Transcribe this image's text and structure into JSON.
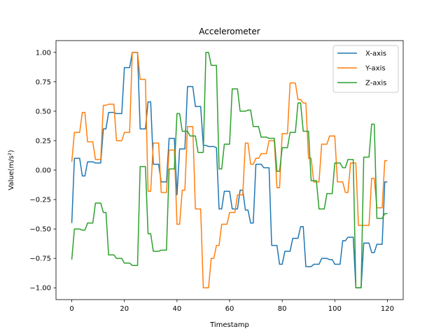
{
  "chart_data": {
    "type": "line",
    "title": "Accelerometer",
    "xlabel": "Timestamp",
    "ylabel": "Value(m/s²)",
    "xlim": [
      -6,
      126
    ],
    "ylim": [
      -1.1,
      1.1
    ],
    "xticks": [
      0,
      20,
      40,
      60,
      80,
      100,
      120
    ],
    "xtick_labels": [
      "0",
      "20",
      "40",
      "60",
      "80",
      "100",
      "120"
    ],
    "yticks": [
      1.0,
      0.75,
      0.5,
      0.25,
      0.0,
      -0.25,
      -0.5,
      -0.75,
      -1.0
    ],
    "ytick_labels": [
      "1.00",
      "0.75",
      "0.50",
      "0.25",
      "0.00",
      "−0.25",
      "−0.50",
      "−0.75",
      "−1.00"
    ],
    "grid": false,
    "legend_position": "top-right",
    "x": [
      0,
      1,
      2,
      3,
      4,
      5,
      6,
      7,
      8,
      9,
      10,
      11,
      12,
      13,
      14,
      15,
      16,
      17,
      18,
      19,
      20,
      21,
      22,
      23,
      24,
      25,
      26,
      27,
      28,
      29,
      30,
      31,
      32,
      33,
      34,
      35,
      36,
      37,
      38,
      39,
      40,
      41,
      42,
      43,
      44,
      45,
      46,
      47,
      48,
      49,
      50,
      51,
      52,
      53,
      54,
      55,
      56,
      57,
      58,
      59,
      60,
      61,
      62,
      63,
      64,
      65,
      66,
      67,
      68,
      69,
      70,
      71,
      72,
      73,
      74,
      75,
      76,
      77,
      78,
      79,
      80,
      81,
      82,
      83,
      84,
      85,
      86,
      87,
      88,
      89,
      90,
      91,
      92,
      93,
      94,
      95,
      96,
      97,
      98,
      99,
      100,
      101,
      102,
      103,
      104,
      105,
      106,
      107,
      108,
      109,
      110,
      111,
      112,
      113,
      114,
      115,
      116,
      117,
      118,
      119,
      120
    ],
    "series": [
      {
        "name": "X-axis",
        "color": "#1f77b4",
        "values": [
          -0.45,
          0.1,
          0.1,
          0.1,
          -0.05,
          -0.05,
          0.07,
          0.07,
          0.07,
          0.06,
          0.06,
          0.06,
          0.35,
          0.35,
          0.49,
          0.49,
          0.49,
          0.48,
          0.48,
          0.48,
          0.87,
          0.87,
          0.87,
          1.0,
          1.0,
          1.0,
          0.35,
          0.35,
          0.35,
          0.58,
          0.58,
          0.05,
          0.05,
          0.05,
          -0.1,
          -0.1,
          -0.1,
          0.27,
          0.27,
          0.27,
          -0.21,
          0.18,
          0.18,
          0.18,
          0.71,
          0.71,
          0.71,
          0.54,
          0.54,
          0.54,
          0.21,
          0.21,
          0.2,
          0.2,
          0.2,
          0.19,
          -0.33,
          -0.33,
          -0.18,
          -0.18,
          -0.18,
          -0.33,
          -0.33,
          -0.33,
          -0.17,
          -0.17,
          -0.34,
          -0.34,
          -0.45,
          -0.45,
          0.05,
          0.05,
          0.05,
          0.02,
          0.02,
          0.02,
          -0.64,
          -0.64,
          -0.64,
          -0.8,
          -0.8,
          -0.69,
          -0.69,
          -0.69,
          -0.58,
          -0.58,
          -0.58,
          -0.48,
          -0.48,
          -0.82,
          -0.82,
          -0.82,
          -0.8,
          -0.8,
          -0.8,
          -0.75,
          -0.75,
          -0.75,
          -0.76,
          -0.76,
          -0.8,
          -0.8,
          -0.8,
          -0.6,
          -0.6,
          -0.57,
          -0.57,
          -0.57,
          -1.0,
          -1.0,
          -1.0,
          -0.62,
          -0.62,
          -0.62,
          -0.7,
          -0.7,
          -0.63,
          -0.63,
          -0.63,
          -0.1,
          -0.1
        ]
      },
      {
        "name": "Y-axis",
        "color": "#ff7f0e",
        "values": [
          0.07,
          0.32,
          0.32,
          0.32,
          0.49,
          0.49,
          0.24,
          0.24,
          0.24,
          0.09,
          0.09,
          0.09,
          0.55,
          0.55,
          0.56,
          0.56,
          0.56,
          0.25,
          0.25,
          0.25,
          0.32,
          0.32,
          0.32,
          1.0,
          1.0,
          1.0,
          0.77,
          0.77,
          0.77,
          -0.18,
          -0.18,
          0.23,
          0.23,
          0.23,
          -0.19,
          -0.19,
          -0.19,
          0.17,
          0.17,
          0.17,
          -0.46,
          -0.46,
          -0.17,
          -0.17,
          0.37,
          0.37,
          0.37,
          -0.33,
          -0.33,
          -0.33,
          -1.0,
          -1.0,
          -1.0,
          -0.75,
          -0.75,
          -0.64,
          -0.64,
          -0.46,
          -0.46,
          -0.46,
          -0.36,
          -0.36,
          -0.36,
          -0.21,
          -0.21,
          -0.21,
          0.23,
          0.23,
          0.05,
          0.05,
          0.1,
          0.1,
          0.14,
          0.14,
          0.14,
          0.25,
          0.25,
          0.25,
          -0.15,
          -0.15,
          0.31,
          0.31,
          0.31,
          0.74,
          0.74,
          0.74,
          0.6,
          0.6,
          0.57,
          0.57,
          0.1,
          0.1,
          -0.1,
          -0.1,
          -0.1,
          0.22,
          0.22,
          0.22,
          0.29,
          0.29,
          0.29,
          -0.1,
          -0.1,
          -0.1,
          -0.19,
          -0.19,
          0.06,
          0.06,
          0.06,
          -0.47,
          -0.47,
          -0.47,
          -0.47,
          -0.47,
          -0.07,
          -0.07,
          -0.32,
          -0.32,
          -0.32,
          0.08,
          0.08
        ]
      },
      {
        "name": "Z-axis",
        "color": "#2ca02c",
        "values": [
          -0.76,
          -0.5,
          -0.5,
          -0.5,
          -0.51,
          -0.51,
          -0.45,
          -0.45,
          -0.45,
          -0.28,
          -0.28,
          -0.28,
          -0.36,
          -0.36,
          -0.72,
          -0.72,
          -0.72,
          -0.75,
          -0.75,
          -0.75,
          -0.79,
          -0.79,
          -0.79,
          -0.81,
          -0.81,
          -0.81,
          0.03,
          0.03,
          0.03,
          -0.54,
          -0.54,
          -0.69,
          -0.69,
          -0.69,
          -0.68,
          -0.68,
          -0.68,
          0.01,
          0.01,
          0.01,
          0.48,
          0.48,
          0.33,
          0.33,
          0.33,
          0.29,
          0.29,
          0.29,
          0.15,
          0.15,
          0.15,
          1.0,
          1.0,
          0.89,
          0.89,
          0.89,
          0.01,
          0.01,
          0.22,
          0.22,
          0.22,
          0.69,
          0.69,
          0.69,
          0.5,
          0.5,
          0.5,
          0.51,
          0.51,
          0.37,
          0.37,
          0.37,
          0.28,
          0.28,
          0.28,
          0.27,
          0.27,
          0.27,
          -0.01,
          -0.01,
          0.19,
          0.19,
          0.19,
          0.32,
          0.32,
          0.32,
          0.57,
          0.57,
          0.33,
          0.33,
          0.33,
          -0.09,
          -0.09,
          -0.09,
          -0.33,
          -0.33,
          -0.33,
          -0.2,
          -0.2,
          -0.2,
          0.06,
          0.06,
          0.06,
          0.02,
          0.02,
          0.09,
          0.09,
          0.09,
          -1.0,
          -1.0,
          -1.0,
          0.11,
          0.11,
          0.11,
          0.39,
          0.39,
          -0.41,
          -0.41,
          -0.41,
          -0.37,
          -0.37
        ]
      }
    ]
  }
}
